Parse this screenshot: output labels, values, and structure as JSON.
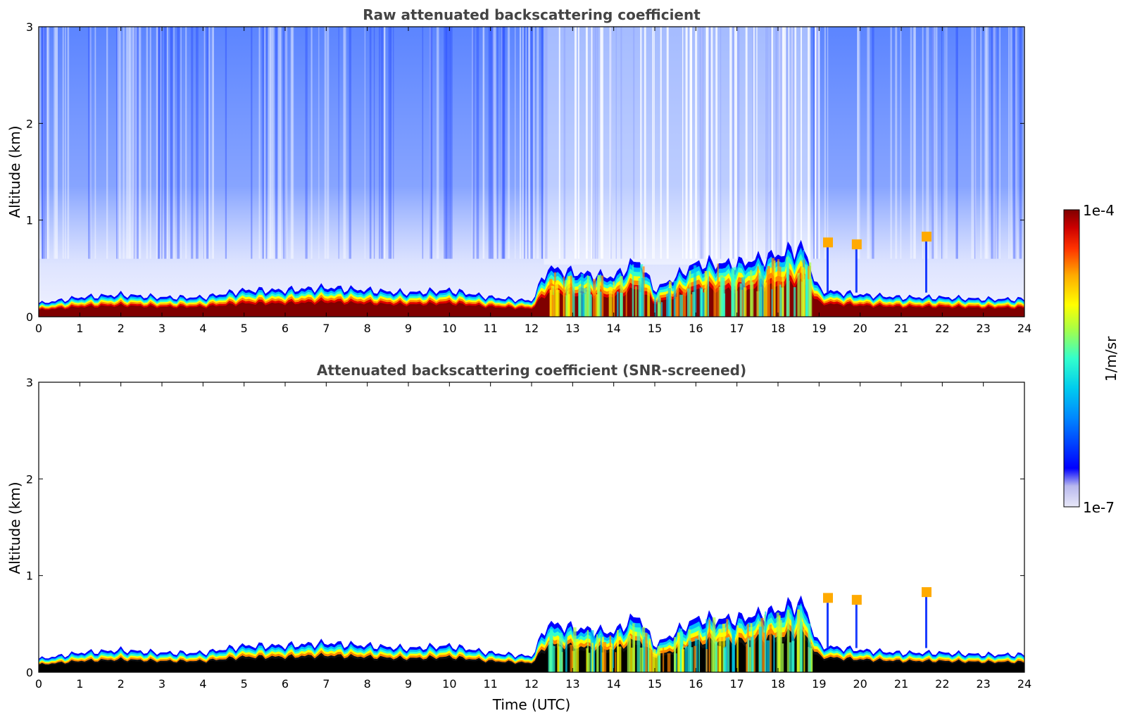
{
  "chart_data": [
    {
      "type": "heatmap",
      "title": "Raw attenuated backscattering coefficient",
      "xlabel": "",
      "ylabel": "Altitude (km)",
      "xlim": [
        0,
        24
      ],
      "ylim": [
        0,
        3
      ],
      "x_ticks": [
        "0",
        "1",
        "2",
        "3",
        "4",
        "5",
        "6",
        "7",
        "8",
        "9",
        "10",
        "11",
        "12",
        "13",
        "14",
        "15",
        "16",
        "17",
        "18",
        "19",
        "20",
        "21",
        "22",
        "23",
        "24"
      ],
      "y_ticks": [
        "0",
        "1",
        "2",
        "3"
      ],
      "boundary_layer_top_km": [
        {
          "t": 0,
          "h": 0.15
        },
        {
          "t": 1,
          "h": 0.22
        },
        {
          "t": 2,
          "h": 0.25
        },
        {
          "t": 3,
          "h": 0.22
        },
        {
          "t": 4,
          "h": 0.22
        },
        {
          "t": 5,
          "h": 0.3
        },
        {
          "t": 6,
          "h": 0.3
        },
        {
          "t": 7,
          "h": 0.33
        },
        {
          "t": 8,
          "h": 0.3
        },
        {
          "t": 9,
          "h": 0.27
        },
        {
          "t": 10,
          "h": 0.3
        },
        {
          "t": 11,
          "h": 0.22
        },
        {
          "t": 12,
          "h": 0.18
        },
        {
          "t": 12.4,
          "h": 0.55
        },
        {
          "t": 13,
          "h": 0.5
        },
        {
          "t": 14,
          "h": 0.45
        },
        {
          "t": 14.6,
          "h": 0.65
        },
        {
          "t": 15,
          "h": 0.3
        },
        {
          "t": 16,
          "h": 0.6
        },
        {
          "t": 17,
          "h": 0.6
        },
        {
          "t": 18,
          "h": 0.7
        },
        {
          "t": 18.6,
          "h": 0.8
        },
        {
          "t": 19,
          "h": 0.3
        },
        {
          "t": 20,
          "h": 0.25
        },
        {
          "t": 21,
          "h": 0.22
        },
        {
          "t": 22,
          "h": 0.22
        },
        {
          "t": 23,
          "h": 0.2
        },
        {
          "t": 24,
          "h": 0.2
        }
      ]
    },
    {
      "type": "heatmap",
      "title": "Attenuated backscattering coefficient (SNR-screened)",
      "xlabel": "Time (UTC)",
      "ylabel": "Altitude (km)",
      "xlim": [
        0,
        24
      ],
      "ylim": [
        0,
        3
      ],
      "x_ticks": [
        "0",
        "1",
        "2",
        "3",
        "4",
        "5",
        "6",
        "7",
        "8",
        "9",
        "10",
        "11",
        "12",
        "13",
        "14",
        "15",
        "16",
        "17",
        "18",
        "19",
        "20",
        "21",
        "22",
        "23",
        "24"
      ],
      "y_ticks": [
        "0",
        "1",
        "2",
        "3"
      ]
    }
  ],
  "colorbar": {
    "label": "1/m/sr",
    "max_label": "1e-4",
    "min_label": "1e-7",
    "scale": "log",
    "colors": [
      "#e8e8f8",
      "#b8b8ee",
      "#0000ff",
      "#0088ff",
      "#00ccee",
      "#33ffcc",
      "#aaff44",
      "#ffff00",
      "#ffaa00",
      "#ff3300",
      "#cc0000",
      "#800000"
    ]
  }
}
